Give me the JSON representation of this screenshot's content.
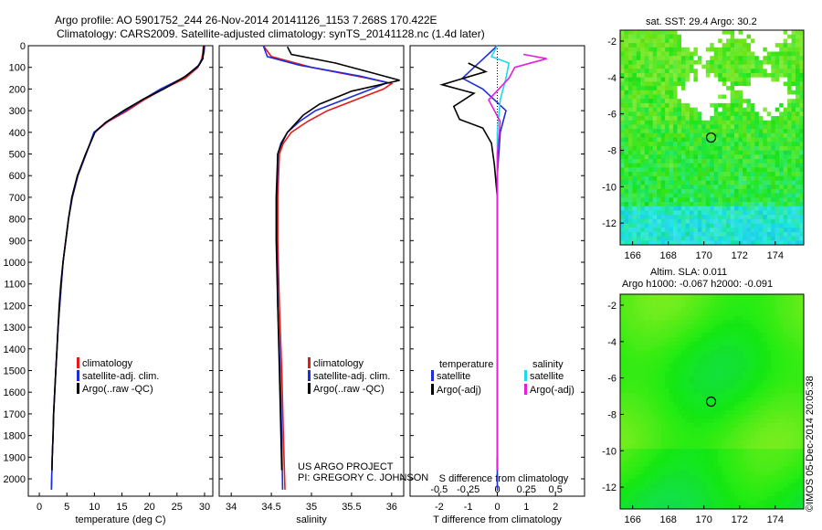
{
  "header": {
    "line1": "Argo profile: AO 5901752_244 26-Nov-2014 20141126_1153 7.268S 170.422E",
    "line2": "Climatology: CARS2009. Satellite-adjusted climatology: synTS_20141128.nc (1.4d later)"
  },
  "colors": {
    "climatology": "#e41a1c",
    "satellite": "#1f2dd8",
    "argo": "#000000",
    "sat_salinity": "#22d8e8",
    "argo_salinity": "#e81de0"
  },
  "depth_ticks": [
    "0",
    "100",
    "200",
    "300",
    "400",
    "500",
    "600",
    "700",
    "800",
    "900",
    "1000",
    "1100",
    "1200",
    "1300",
    "1400",
    "1500",
    "1600",
    "1700",
    "1800",
    "1900",
    "2000"
  ],
  "chart_data": [
    {
      "type": "line",
      "panel": "temperature",
      "xlabel": "temperature (deg C)",
      "xticks": [
        "0",
        "5",
        "10",
        "15",
        "20",
        "25",
        "30"
      ],
      "xlim": [
        -2,
        31.5
      ],
      "ylim": [
        2080,
        0
      ],
      "legend": [
        "climatology",
        "satellite-adj. clim.",
        "Argo(..raw -QC)"
      ],
      "series": [
        {
          "name": "climatology",
          "color_key": "climatology",
          "points": [
            [
              29.8,
              0
            ],
            [
              29.7,
              30
            ],
            [
              29.5,
              60
            ],
            [
              28.8,
              100
            ],
            [
              26.5,
              150
            ],
            [
              22.5,
              200
            ],
            [
              19,
              250
            ],
            [
              16,
              300
            ],
            [
              12.5,
              350
            ],
            [
              10,
              400
            ],
            [
              8.5,
              500
            ],
            [
              7,
              600
            ],
            [
              6,
              700
            ],
            [
              5.3,
              800
            ],
            [
              4.8,
              900
            ],
            [
              4.3,
              1000
            ],
            [
              4,
              1100
            ],
            [
              3.7,
              1200
            ],
            [
              3.4,
              1300
            ],
            [
              3.2,
              1400
            ],
            [
              3,
              1500
            ],
            [
              2.8,
              1600
            ],
            [
              2.6,
              1700
            ],
            [
              2.5,
              1800
            ],
            [
              2.35,
              1900
            ],
            [
              2.25,
              2000
            ],
            [
              2.2,
              2050
            ]
          ]
        },
        {
          "name": "satellite-adj. clim.",
          "color_key": "satellite",
          "points": [
            [
              30,
              0
            ],
            [
              29.9,
              30
            ],
            [
              29.6,
              60
            ],
            [
              28.7,
              100
            ],
            [
              26,
              150
            ],
            [
              22,
              200
            ],
            [
              18.7,
              250
            ],
            [
              15.6,
              300
            ],
            [
              12.3,
              350
            ],
            [
              9.9,
              400
            ],
            [
              8.5,
              500
            ],
            [
              7,
              600
            ],
            [
              6,
              700
            ],
            [
              5.3,
              800
            ],
            [
              4.8,
              900
            ],
            [
              4.3,
              1000
            ],
            [
              4,
              1100
            ],
            [
              3.7,
              1200
            ],
            [
              3.4,
              1300
            ],
            [
              3.2,
              1400
            ],
            [
              3,
              1500
            ],
            [
              2.8,
              1600
            ],
            [
              2.6,
              1700
            ],
            [
              2.5,
              1800
            ],
            [
              2.35,
              1900
            ],
            [
              2.25,
              2000
            ],
            [
              2.2,
              2050
            ]
          ]
        },
        {
          "name": "Argo(..raw -QC)",
          "color_key": "argo",
          "points": [
            [
              29.9,
              0
            ],
            [
              29.8,
              30
            ],
            [
              29.7,
              60
            ],
            [
              29,
              90
            ],
            [
              26.6,
              140
            ],
            [
              22.6,
              200
            ],
            [
              19,
              245
            ],
            [
              15.3,
              300
            ],
            [
              12,
              355
            ],
            [
              10.1,
              400
            ],
            [
              8.4,
              500
            ],
            [
              6.9,
              600
            ],
            [
              5.9,
              700
            ],
            [
              5.3,
              800
            ],
            [
              4.8,
              900
            ],
            [
              4.3,
              1000
            ],
            [
              3.9,
              1100
            ],
            [
              3.6,
              1200
            ],
            [
              3.4,
              1300
            ],
            [
              3.2,
              1400
            ],
            [
              3,
              1500
            ],
            [
              2.8,
              1600
            ],
            [
              2.6,
              1700
            ],
            [
              2.5,
              1800
            ],
            [
              2.35,
              1900
            ],
            [
              2.3,
              1960
            ]
          ]
        }
      ]
    },
    {
      "type": "line",
      "panel": "salinity",
      "xlabel": "salinity",
      "xticks": [
        "34",
        "34.5",
        "35",
        "35.5",
        "36"
      ],
      "xlim": [
        33.85,
        36.15
      ],
      "ylim": [
        2080,
        0
      ],
      "legend": [
        "climatology",
        "satellite-adj. clim.",
        "Argo(..raw -QC)"
      ],
      "annotation": [
        "US ARGO PROJECT",
        "PI: GREGORY C. JOHNSON"
      ],
      "series": [
        {
          "name": "climatology",
          "color_key": "climatology",
          "points": [
            [
              34.4,
              0
            ],
            [
              34.5,
              50
            ],
            [
              35,
              100
            ],
            [
              35.7,
              150
            ],
            [
              36,
              175
            ],
            [
              35.9,
              200
            ],
            [
              35.55,
              250
            ],
            [
              35.2,
              300
            ],
            [
              34.95,
              350
            ],
            [
              34.75,
              400
            ],
            [
              34.65,
              450
            ],
            [
              34.6,
              500
            ],
            [
              34.58,
              700
            ],
            [
              34.58,
              900
            ],
            [
              34.6,
              1200
            ],
            [
              34.63,
              1500
            ],
            [
              34.65,
              1800
            ],
            [
              34.67,
              2050
            ]
          ]
        },
        {
          "name": "satellite-adj. clim.",
          "color_key": "satellite",
          "points": [
            [
              34.4,
              0
            ],
            [
              34.45,
              50
            ],
            [
              34.85,
              90
            ],
            [
              35.6,
              140
            ],
            [
              35.95,
              170
            ],
            [
              35.75,
              200
            ],
            [
              35.4,
              250
            ],
            [
              35.05,
              300
            ],
            [
              34.85,
              350
            ],
            [
              34.7,
              400
            ],
            [
              34.62,
              450
            ],
            [
              34.58,
              500
            ],
            [
              34.57,
              700
            ],
            [
              34.57,
              900
            ],
            [
              34.58,
              1200
            ],
            [
              34.61,
              1500
            ],
            [
              34.63,
              1800
            ],
            [
              34.64,
              2050
            ]
          ]
        },
        {
          "name": "Argo(..raw -QC)",
          "color_key": "argo",
          "points": [
            [
              34.7,
              5
            ],
            [
              34.75,
              40
            ],
            [
              35.3,
              80
            ],
            [
              35.7,
              120
            ],
            [
              36.1,
              160
            ],
            [
              35.5,
              210
            ],
            [
              35.1,
              270
            ],
            [
              34.9,
              320
            ],
            [
              34.8,
              360
            ],
            [
              34.7,
              400
            ],
            [
              34.63,
              450
            ],
            [
              34.58,
              500
            ],
            [
              34.56,
              700
            ],
            [
              34.56,
              900
            ],
            [
              34.58,
              1200
            ],
            [
              34.6,
              1500
            ],
            [
              34.62,
              1800
            ],
            [
              34.63,
              1960
            ]
          ]
        }
      ]
    },
    {
      "type": "line",
      "panel": "difference",
      "xlabel": "T difference from climatology",
      "xlabel_top": "S difference from climatology",
      "xticks": [
        "-2",
        "-1",
        "0",
        "1",
        "2"
      ],
      "xticks_top": [
        "-0.5",
        "-0.25",
        "0",
        "0.25",
        "0.5"
      ],
      "xlim": [
        -3,
        3
      ],
      "ylim": [
        2080,
        0
      ],
      "legend_temperature": {
        "title": "temperature",
        "items": [
          "satellite",
          "Argo(-adj)"
        ]
      },
      "legend_salinity": {
        "title": "salinity",
        "items": [
          "satellite",
          "Argo(-adj)"
        ]
      },
      "series": [
        {
          "name": "temperature satellite",
          "color_key": "satellite",
          "points": [
            [
              0,
              0
            ],
            [
              -0.4,
              50
            ],
            [
              -0.8,
              100
            ],
            [
              -1.2,
              150
            ],
            [
              -0.5,
              200
            ],
            [
              0.3,
              300
            ],
            [
              0.1,
              400
            ],
            [
              0,
              600
            ],
            [
              0,
              1000
            ],
            [
              0,
              2050
            ]
          ]
        },
        {
          "name": "temperature Argo(-adj)",
          "color_key": "argo",
          "points": [
            [
              -1,
              80
            ],
            [
              -0.4,
              120
            ],
            [
              -1.9,
              180
            ],
            [
              -0.8,
              220
            ],
            [
              -1.5,
              280
            ],
            [
              -1.3,
              340
            ],
            [
              -0.5,
              380
            ],
            [
              -0.2,
              450
            ],
            [
              -0.1,
              550
            ],
            [
              0,
              700
            ],
            [
              0,
              1000
            ],
            [
              0,
              1960
            ]
          ]
        },
        {
          "name": "salinity satellite",
          "color_key": "sat_salinity",
          "points": [
            [
              0,
              0
            ],
            [
              -0.2,
              50
            ],
            [
              0.4,
              80
            ],
            [
              0.3,
              150
            ],
            [
              0.1,
              250
            ],
            [
              0,
              400
            ],
            [
              0,
              1000
            ],
            [
              0,
              1400
            ],
            [
              0,
              1900
            ]
          ]
        },
        {
          "name": "salinity Argo(-adj)",
          "color_key": "argo_salinity",
          "points": [
            [
              0.9,
              40
            ],
            [
              1.7,
              60
            ],
            [
              0.6,
              100
            ],
            [
              0.4,
              150
            ],
            [
              -0.3,
              250
            ],
            [
              0.1,
              350
            ],
            [
              0,
              500
            ],
            [
              0,
              1000
            ],
            [
              0,
              1960
            ]
          ]
        }
      ]
    },
    {
      "type": "heatmap",
      "panel": "sst",
      "title": "sat. SST: 29.4  Argo: 30.2",
      "xticks": [
        "166",
        "168",
        "170",
        "172",
        "174"
      ],
      "yticks": [
        "-2",
        "-4",
        "-6",
        "-8",
        "-10",
        "-12"
      ],
      "xlim": [
        165.3,
        175.6
      ],
      "ylim": [
        -13.2,
        -1.4
      ],
      "marker": [
        170.4,
        -7.3
      ]
    },
    {
      "type": "heatmap",
      "panel": "sla",
      "title": "Altim. SLA: 0.011",
      "subtitle": "Argo h1000: -0.067  h2000: -0.091",
      "xticks": [
        "166",
        "168",
        "170",
        "172",
        "174"
      ],
      "yticks": [
        "-2",
        "-4",
        "-6",
        "-8",
        "-10",
        "-12"
      ],
      "xlim": [
        165.3,
        175.6
      ],
      "ylim": [
        -13.2,
        -1.4
      ],
      "marker": [
        170.4,
        -7.3
      ]
    }
  ],
  "footer": {
    "watermark": "©IMOS 05-Dec-2014 20:05:38"
  }
}
